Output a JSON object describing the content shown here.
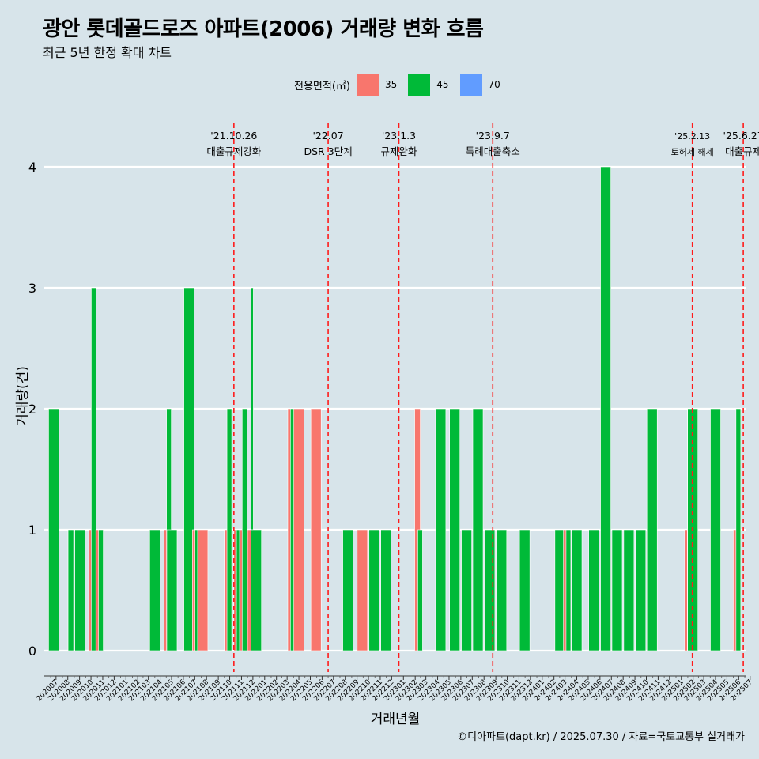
{
  "title": "광안 롯데골드로즈 아파트(2006) 거래량 변화 흐름",
  "subtitle": "최근 5년 한정 확대 차트",
  "legend": {
    "title": "전용면적(㎡)",
    "items": [
      {
        "label": "35",
        "color": "#f8766d"
      },
      {
        "label": "45",
        "color": "#00ba38"
      },
      {
        "label": "70",
        "color": "#619cff"
      }
    ]
  },
  "caption": "©디아파트(dapt.kr) / 2025.07.30 / 자료=국토교통부 실거래가",
  "chart_data": {
    "type": "bar",
    "stacked": true,
    "xlabel": "거래년월",
    "ylabel": "거래량(건)",
    "ylim": [
      0,
      4
    ],
    "yticks": [
      0,
      1,
      2,
      3,
      4
    ],
    "grid": "horizontal",
    "categories": [
      "202007",
      "202008",
      "202009",
      "202010",
      "202011",
      "202012",
      "202101",
      "202102",
      "202103",
      "202104",
      "202105",
      "202106",
      "202107",
      "202108",
      "202109",
      "202110",
      "202111",
      "202112",
      "202201",
      "202202",
      "202203",
      "202204",
      "202205",
      "202206",
      "202207",
      "202208",
      "202209",
      "202210",
      "202211",
      "202212",
      "202301",
      "202302",
      "202303",
      "202304",
      "202305",
      "202306",
      "202307",
      "202308",
      "202309",
      "202310",
      "202311",
      "202312",
      "202401",
      "202402",
      "202403",
      "202404",
      "202405",
      "202406",
      "202407",
      "202408",
      "202409",
      "202410",
      "202411",
      "202412",
      "202501",
      "202502",
      "202503",
      "202504",
      "202505",
      "202506",
      "202507"
    ],
    "bars": [
      {
        "month": "202007",
        "d": 9,
        "w": 13,
        "area": "45",
        "value": 2
      },
      {
        "month": "202008",
        "d": 23,
        "w": 7,
        "area": "35",
        "value": 1
      },
      {
        "month": "202008",
        "d": 23,
        "w": 7,
        "area": "45",
        "value": 1
      },
      {
        "month": "202009",
        "d": 16,
        "w": 13,
        "area": "45",
        "value": 1
      },
      {
        "month": "202010",
        "d": 15,
        "w": 6,
        "area": "35",
        "value": 1
      },
      {
        "month": "202010",
        "d": 22,
        "w": 6,
        "area": "45",
        "value": 3
      },
      {
        "month": "202011",
        "d": 3,
        "w": 6,
        "area": "35",
        "value": 1
      },
      {
        "month": "202011",
        "d": 10,
        "w": 6,
        "area": "45",
        "value": 1
      },
      {
        "month": "202104",
        "d": 1,
        "w": 13,
        "area": "45",
        "value": 1
      },
      {
        "month": "202105",
        "d": 1,
        "w": 6,
        "area": "35",
        "value": 1
      },
      {
        "month": "202105",
        "d": 8,
        "w": 6,
        "area": "45",
        "value": 2
      },
      {
        "month": "202105",
        "d": 16,
        "w": 13,
        "area": "45",
        "value": 1
      },
      {
        "month": "202106",
        "d": 30,
        "w": 13,
        "area": "45",
        "value": 3
      },
      {
        "month": "202107",
        "d": 15,
        "w": 6,
        "area": "35",
        "value": 1
      },
      {
        "month": "202107",
        "d": 22,
        "w": 6,
        "area": "45",
        "value": 1
      },
      {
        "month": "202108",
        "d": 5,
        "w": 13,
        "area": "35",
        "value": 1
      },
      {
        "month": "202110",
        "d": 7,
        "w": 6,
        "area": "35",
        "value": 1
      },
      {
        "month": "202110",
        "d": 14,
        "w": 6,
        "area": "45",
        "value": 2
      },
      {
        "month": "202111",
        "d": 1,
        "w": 6,
        "area": "35",
        "value": 1
      },
      {
        "month": "202111",
        "d": 8,
        "w": 6,
        "area": "45",
        "value": 1
      },
      {
        "month": "202111",
        "d": 16,
        "w": 6,
        "area": "35",
        "value": 1
      },
      {
        "month": "202111",
        "d": 23,
        "w": 6,
        "area": "45",
        "value": 2
      },
      {
        "month": "202112",
        "d": 7,
        "w": 6,
        "area": "35",
        "value": 1
      },
      {
        "month": "202112",
        "d": 13,
        "w": 3,
        "area": "45",
        "value": 3
      },
      {
        "month": "202112",
        "d": 17,
        "w": 6,
        "area": "70",
        "value": 1
      },
      {
        "month": "202112",
        "d": 24,
        "w": 13,
        "area": "45",
        "value": 1
      },
      {
        "month": "202203",
        "d": 23,
        "w": 6,
        "area": "35",
        "value": 2
      },
      {
        "month": "202203",
        "d": 30,
        "w": 6,
        "area": "45",
        "value": 2
      },
      {
        "month": "202204",
        "d": 15,
        "w": 13,
        "area": "35",
        "value": 2
      },
      {
        "month": "202205",
        "d": 30,
        "w": 13,
        "area": "35",
        "value": 2
      },
      {
        "month": "202208",
        "d": 22,
        "w": 13,
        "area": "45",
        "value": 1
      },
      {
        "month": "202209",
        "d": 29,
        "w": 13,
        "area": "35",
        "value": 1
      },
      {
        "month": "202210",
        "d": 30,
        "w": 13,
        "area": "45",
        "value": 1
      },
      {
        "month": "202211",
        "d": 30,
        "w": 13,
        "area": "45",
        "value": 1
      },
      {
        "month": "202302",
        "d": 21,
        "w": 7,
        "area": "35",
        "value": 2
      },
      {
        "month": "202302",
        "d": 28,
        "w": 6,
        "area": "45",
        "value": 1
      },
      {
        "month": "202304",
        "d": 23,
        "w": 13,
        "area": "45",
        "value": 2
      },
      {
        "month": "202305",
        "d": 30,
        "w": 13,
        "area": "45",
        "value": 2
      },
      {
        "month": "202306",
        "d": 30,
        "w": 13,
        "area": "45",
        "value": 1
      },
      {
        "month": "202307",
        "d": 30,
        "w": 13,
        "area": "45",
        "value": 2
      },
      {
        "month": "202308",
        "d": 30,
        "w": 13,
        "area": "45",
        "value": 1
      },
      {
        "month": "202309",
        "d": 30,
        "w": 13,
        "area": "45",
        "value": 1
      },
      {
        "month": "202311",
        "d": 30,
        "w": 13,
        "area": "45",
        "value": 1
      },
      {
        "month": "202403",
        "d": 2,
        "w": 13,
        "area": "45",
        "value": 1
      },
      {
        "month": "202403",
        "d": 17,
        "w": 6,
        "area": "35",
        "value": 1
      },
      {
        "month": "202403",
        "d": 24,
        "w": 6,
        "area": "45",
        "value": 1
      },
      {
        "month": "202404",
        "d": 15,
        "w": 13,
        "area": "45",
        "value": 1
      },
      {
        "month": "202405",
        "d": 30,
        "w": 13,
        "area": "45",
        "value": 1
      },
      {
        "month": "202406",
        "d": 30,
        "w": 13,
        "area": "45",
        "value": 4
      },
      {
        "month": "202407",
        "d": 30,
        "w": 13,
        "area": "45",
        "value": 1
      },
      {
        "month": "202408",
        "d": 30,
        "w": 13,
        "area": "45",
        "value": 1
      },
      {
        "month": "202409",
        "d": 30,
        "w": 13,
        "area": "45",
        "value": 1
      },
      {
        "month": "202410",
        "d": 30,
        "w": 13,
        "area": "45",
        "value": 2
      },
      {
        "month": "202501",
        "d": 30,
        "w": 6,
        "area": "35",
        "value": 1
      },
      {
        "month": "202502",
        "d": 6,
        "w": 6,
        "area": "45",
        "value": 2
      },
      {
        "month": "202502",
        "d": 14,
        "w": 13,
        "area": "45",
        "value": 2
      },
      {
        "month": "202504",
        "d": 15,
        "w": 13,
        "area": "45",
        "value": 2
      },
      {
        "month": "202506",
        "d": 7,
        "w": 6,
        "area": "35",
        "value": 1
      },
      {
        "month": "202506",
        "d": 14,
        "w": 6,
        "area": "45",
        "value": 2
      }
    ],
    "annotations": [
      {
        "date_label": "'21.10.26",
        "text": "대출규제강화",
        "date": "2021-10-26"
      },
      {
        "date_label": "'22.07",
        "text": "DSR 3단계",
        "date": "2022-07-01"
      },
      {
        "date_label": "'23.1.3",
        "text": "규제완화",
        "date": "2023-01-03"
      },
      {
        "date_label": "'23.9.7",
        "text": "특례대출축소",
        "date": "2023-09-07"
      },
      {
        "date_label": "'25.2.13",
        "text": "토허제 해제",
        "date": "2025-02-13"
      },
      {
        "date_label": "'25.6.27",
        "text": "대출규제",
        "date": "2025-06-27"
      }
    ]
  }
}
